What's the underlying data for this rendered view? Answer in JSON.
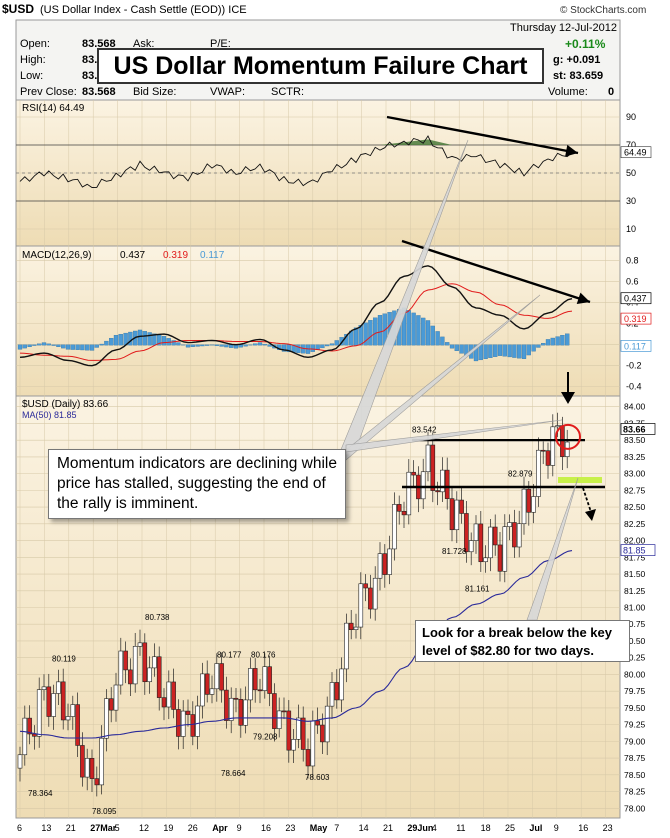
{
  "header": {
    "symbol": "$USD",
    "description": "(US Dollar Index - Cash Settle (EOD)) ICE",
    "source": "© StockCharts.com",
    "date": "Thursday 12-Jul-2012",
    "change_pct": "+0.11%",
    "open_label": "Open:",
    "open_value": "83.568",
    "high_label": "High:",
    "high_value": "83.",
    "low_label": "Low:",
    "low_value": "83.",
    "prev_close_label": "Prev Close:",
    "prev_close_value": "83.568",
    "bid_label": "Bid Size:",
    "vwap_label": "VWAP:",
    "sctr_label": "SCTR:",
    "volume_label": "Volume:",
    "volume_value": "0",
    "change_partial": "g: +0.091",
    "last_partial": "st: 83.659",
    "partial_ask": "Ask:",
    "partial_pe": "P/E:"
  },
  "title": "US Dollar Momentum Failure Chart",
  "annotations": {
    "momentum_note": "Momentum indicators are declining while price has stalled, suggesting the end of the rally is imminent.",
    "break_note": "Look for a break below the key level of $82.80 for two days."
  },
  "colors": {
    "panel_bg": "#f3e3c3",
    "panel_bg_light": "#faf0dc",
    "rsi_fill": "#4a7a3a",
    "macd_signal": "#e11b1b",
    "histogram": "#4a9ad6",
    "ma_line": "#2a2a9a",
    "up_candle": "#ffffff",
    "down_candle": "#cc2222",
    "highlight": "#c8f04a"
  },
  "chart_data": [
    {
      "type": "line",
      "name": "RSI panel",
      "legend": "RSI(14) 64.49",
      "y_ticks": [
        "90",
        "70",
        "50",
        "30",
        "10"
      ],
      "last_value": "64.49",
      "ylim": [
        0,
        100
      ],
      "guide_levels": [
        70,
        30
      ],
      "x": [
        "Feb 6",
        "Feb 13",
        "Feb 21",
        "Feb 27",
        "Mar 5",
        "Mar 12",
        "Mar 19",
        "Mar 26",
        "Apr 2",
        "Apr 9",
        "Apr 16",
        "Apr 23",
        "Apr 30",
        "May 7",
        "May 14",
        "May 21",
        "May 29",
        "Jun 4",
        "Jun 11",
        "Jun 18",
        "Jun 25",
        "Jul 2",
        "Jul 9",
        "Jul 12"
      ],
      "values": [
        44,
        50,
        46,
        40,
        48,
        56,
        50,
        46,
        56,
        50,
        55,
        45,
        42,
        52,
        60,
        68,
        72,
        74,
        60,
        62,
        56,
        50,
        60,
        64.49
      ]
    },
    {
      "type": "line",
      "name": "MACD panel",
      "legend": "MACD(12,26,9)",
      "macd_value": "0.437",
      "signal_value": "0.319",
      "hist_value": "0.117",
      "y_ticks": [
        "0.8",
        "0.6",
        "0.4",
        "0.2",
        "0.0",
        "-0.2",
        "-0.4"
      ],
      "ylim": [
        -0.45,
        0.9
      ],
      "x": [
        "Feb 6",
        "Feb 13",
        "Feb 21",
        "Feb 27",
        "Mar 5",
        "Mar 12",
        "Mar 19",
        "Mar 26",
        "Apr 2",
        "Apr 9",
        "Apr 16",
        "Apr 23",
        "Apr 30",
        "May 7",
        "May 14",
        "May 21",
        "May 29",
        "Jun 4",
        "Jun 11",
        "Jun 18",
        "Jun 25",
        "Jul 2",
        "Jul 9",
        "Jul 12"
      ],
      "macd": [
        -0.12,
        -0.08,
        -0.15,
        -0.2,
        -0.05,
        0.08,
        0.1,
        0.02,
        0.04,
        0.0,
        0.05,
        -0.05,
        -0.12,
        -0.05,
        0.15,
        0.4,
        0.65,
        0.75,
        0.55,
        0.35,
        0.28,
        0.15,
        0.3,
        0.437
      ],
      "signal": [
        -0.08,
        -0.1,
        -0.11,
        -0.15,
        -0.14,
        -0.06,
        0.02,
        0.04,
        0.04,
        0.03,
        0.03,
        0.01,
        -0.04,
        -0.06,
        -0.01,
        0.12,
        0.3,
        0.52,
        0.58,
        0.5,
        0.38,
        0.28,
        0.25,
        0.319
      ],
      "histogram": [
        -0.04,
        0.02,
        -0.04,
        -0.05,
        0.09,
        0.14,
        0.08,
        -0.02,
        0.0,
        -0.03,
        0.02,
        -0.06,
        -0.08,
        0.01,
        0.16,
        0.28,
        0.35,
        0.23,
        -0.03,
        -0.15,
        -0.1,
        -0.13,
        0.05,
        0.117
      ]
    },
    {
      "type": "bar",
      "name": "Price panel",
      "legend_price": "$USD (Daily) 83.66",
      "legend_ma": "MA(50) 81.85",
      "last_value": "83.66",
      "ma_last": "81.85",
      "ylim": [
        77.9,
        84.1
      ],
      "y_ticks": [
        "84.00",
        "83.75",
        "83.50",
        "83.25",
        "83.00",
        "82.75",
        "82.50",
        "82.25",
        "82.00",
        "81.75",
        "81.50",
        "81.25",
        "81.00",
        "80.75",
        "80.50",
        "80.25",
        "80.00",
        "79.75",
        "79.50",
        "79.25",
        "79.00",
        "78.75",
        "78.50",
        "78.25",
        "78.00"
      ],
      "x_ticks": [
        "6",
        "13",
        "21",
        "27Mar",
        "5",
        "12",
        "19",
        "26",
        "Apr",
        "9",
        "16",
        "23",
        "May",
        "7",
        "14",
        "21",
        "29Jun",
        "4",
        "11",
        "18",
        "25",
        "Jul",
        "9",
        "16",
        "23"
      ],
      "price_labels": [
        "78.364",
        "80.119",
        "78.095",
        "80.738",
        "80.177",
        "80.176",
        "78.664",
        "79.208",
        "78.603",
        "83.542",
        "81.728",
        "82.879",
        "81.161"
      ],
      "key_level": 82.8,
      "resistance_level": 83.5,
      "x": [
        "Feb 6",
        "Feb 13",
        "Feb 21",
        "Feb 27",
        "Mar 5",
        "Mar 12",
        "Mar 19",
        "Mar 26",
        "Apr 2",
        "Apr 9",
        "Apr 16",
        "Apr 23",
        "Apr 30",
        "May 7",
        "May 14",
        "May 21",
        "May 29",
        "Jun 4",
        "Jun 11",
        "Jun 18",
        "Jun 25",
        "Jul 2",
        "Jul 9",
        "Jul 12"
      ],
      "close": [
        78.8,
        79.8,
        79.4,
        78.4,
        79.9,
        80.4,
        79.6,
        79.3,
        79.9,
        79.5,
        79.9,
        79.3,
        78.8,
        79.7,
        80.9,
        81.6,
        82.6,
        83.2,
        82.4,
        82.0,
        81.8,
        82.5,
        83.4,
        83.66
      ],
      "ma50": [
        79.15,
        79.1,
        79.05,
        79.05,
        79.1,
        79.15,
        79.2,
        79.25,
        79.3,
        79.35,
        79.35,
        79.35,
        79.3,
        79.35,
        79.5,
        79.75,
        80.1,
        80.5,
        80.85,
        81.05,
        81.2,
        81.45,
        81.7,
        81.85
      ]
    }
  ]
}
